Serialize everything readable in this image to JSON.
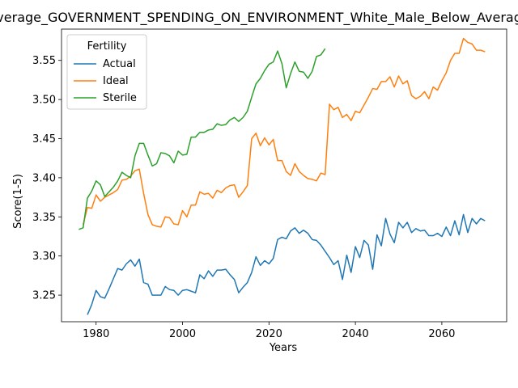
{
  "chart_data": {
    "type": "line",
    "title": "Average_GOVERNMENT_SPENDING_ON_ENVIRONMENT_White_Male_Below_Average",
    "xlabel": "Years",
    "ylabel": "Score(1-5)",
    "xlim": [
      1972,
      2075
    ],
    "ylim": [
      3.216,
      3.59
    ],
    "xticks": [
      1980,
      2000,
      2020,
      2040,
      2060
    ],
    "yticks": [
      3.25,
      3.3,
      3.35,
      3.4,
      3.45,
      3.5,
      3.55
    ],
    "xtick_labels": [
      "1980",
      "2000",
      "2020",
      "2040",
      "2060"
    ],
    "ytick_labels": [
      "3.25",
      "3.30",
      "3.35",
      "3.40",
      "3.45",
      "3.50",
      "3.55"
    ],
    "grid": false,
    "legend": {
      "title": "Fertility",
      "placement": "top-left"
    },
    "series": [
      {
        "name": "Actual",
        "color": "#1f77b4",
        "x": [
          1978,
          1979,
          1980,
          1981,
          1982,
          1983,
          1984,
          1985,
          1986,
          1987,
          1988,
          1989,
          1990,
          1991,
          1992,
          1993,
          1994,
          1995,
          1996,
          1997,
          1998,
          1999,
          2000,
          2001,
          2002,
          2003,
          2004,
          2005,
          2006,
          2007,
          2008,
          2009,
          2010,
          2011,
          2012,
          2013,
          2014,
          2015,
          2016,
          2017,
          2018,
          2019,
          2020,
          2021,
          2022,
          2023,
          2024,
          2025,
          2026,
          2027,
          2028,
          2029,
          2030,
          2031,
          2032,
          2033,
          2034,
          2035,
          2036,
          2037,
          2038,
          2039,
          2040,
          2041,
          2042,
          2043,
          2044,
          2045,
          2046,
          2047,
          2048,
          2049,
          2050,
          2051,
          2052,
          2053,
          2054,
          2055,
          2056,
          2057,
          2058,
          2059,
          2060,
          2061,
          2062,
          2063,
          2064,
          2065,
          2066,
          2067,
          2068,
          2069,
          2070
        ],
        "values": [
          3.225,
          3.238,
          3.256,
          3.248,
          3.246,
          3.258,
          3.271,
          3.284,
          3.282,
          3.29,
          3.295,
          3.287,
          3.296,
          3.266,
          3.264,
          3.25,
          3.25,
          3.25,
          3.261,
          3.257,
          3.256,
          3.25,
          3.256,
          3.257,
          3.255,
          3.253,
          3.276,
          3.271,
          3.281,
          3.274,
          3.282,
          3.282,
          3.283,
          3.276,
          3.27,
          3.253,
          3.26,
          3.266,
          3.279,
          3.299,
          3.288,
          3.294,
          3.29,
          3.297,
          3.321,
          3.324,
          3.322,
          3.332,
          3.336,
          3.329,
          3.333,
          3.329,
          3.321,
          3.32,
          3.314,
          3.306,
          3.298,
          3.289,
          3.294,
          3.27,
          3.301,
          3.279,
          3.312,
          3.298,
          3.32,
          3.314,
          3.283,
          3.327,
          3.313,
          3.348,
          3.328,
          3.317,
          3.343,
          3.336,
          3.343,
          3.33,
          3.335,
          3.332,
          3.333,
          3.326,
          3.326,
          3.329,
          3.325,
          3.337,
          3.326,
          3.345,
          3.327,
          3.353,
          3.33,
          3.348,
          3.341,
          3.348,
          3.345
        ]
      },
      {
        "name": "Ideal",
        "color": "#ff7f0e",
        "x": [
          1977,
          1978,
          1979,
          1980,
          1981,
          1982,
          1983,
          1984,
          1985,
          1986,
          1987,
          1988,
          1989,
          1990,
          1991,
          1992,
          1993,
          1994,
          1995,
          1996,
          1997,
          1998,
          1999,
          2000,
          2001,
          2002,
          2003,
          2004,
          2005,
          2006,
          2007,
          2008,
          2009,
          2010,
          2011,
          2012,
          2013,
          2014,
          2015,
          2016,
          2017,
          2018,
          2019,
          2020,
          2021,
          2022,
          2023,
          2024,
          2025,
          2026,
          2027,
          2028,
          2029,
          2030,
          2031,
          2032,
          2033,
          2034,
          2035,
          2036,
          2037,
          2038,
          2039,
          2040,
          2041,
          2042,
          2043,
          2044,
          2045,
          2046,
          2047,
          2048,
          2049,
          2050,
          2051,
          2052,
          2053,
          2054,
          2055,
          2056,
          2057,
          2058,
          2059,
          2060,
          2061,
          2062,
          2063,
          2064,
          2065,
          2066,
          2067,
          2068,
          2069,
          2070
        ],
        "values": [
          3.34,
          3.362,
          3.361,
          3.378,
          3.37,
          3.375,
          3.378,
          3.381,
          3.385,
          3.397,
          3.398,
          3.402,
          3.409,
          3.411,
          3.38,
          3.353,
          3.34,
          3.338,
          3.337,
          3.35,
          3.349,
          3.341,
          3.34,
          3.358,
          3.35,
          3.365,
          3.365,
          3.382,
          3.379,
          3.38,
          3.374,
          3.384,
          3.381,
          3.387,
          3.39,
          3.391,
          3.375,
          3.382,
          3.39,
          3.45,
          3.457,
          3.441,
          3.451,
          3.442,
          3.449,
          3.422,
          3.422,
          3.408,
          3.403,
          3.418,
          3.408,
          3.403,
          3.399,
          3.398,
          3.396,
          3.406,
          3.404,
          3.494,
          3.487,
          3.49,
          3.477,
          3.481,
          3.473,
          3.485,
          3.483,
          3.493,
          3.503,
          3.514,
          3.513,
          3.523,
          3.523,
          3.529,
          3.516,
          3.53,
          3.52,
          3.524,
          3.505,
          3.501,
          3.504,
          3.51,
          3.501,
          3.516,
          3.512,
          3.524,
          3.534,
          3.55,
          3.559,
          3.559,
          3.578,
          3.573,
          3.571,
          3.563,
          3.563,
          3.561
        ]
      },
      {
        "name": "Sterile",
        "color": "#2ca02c",
        "x": [
          1976,
          1977,
          1978,
          1979,
          1980,
          1981,
          1982,
          1983,
          1984,
          1985,
          1986,
          1987,
          1988,
          1989,
          1990,
          1991,
          1992,
          1993,
          1994,
          1995,
          1996,
          1997,
          1998,
          1999,
          2000,
          2001,
          2002,
          2003,
          2004,
          2005,
          2006,
          2007,
          2008,
          2009,
          2010,
          2011,
          2012,
          2013,
          2014,
          2015,
          2016,
          2017,
          2018,
          2019,
          2020,
          2021,
          2022,
          2023,
          2024,
          2025,
          2026,
          2027,
          2028,
          2029,
          2030,
          2031,
          2032,
          2033
        ],
        "values": [
          3.334,
          3.336,
          3.374,
          3.383,
          3.396,
          3.391,
          3.376,
          3.382,
          3.388,
          3.396,
          3.407,
          3.403,
          3.4,
          3.428,
          3.444,
          3.444,
          3.429,
          3.415,
          3.418,
          3.432,
          3.431,
          3.428,
          3.419,
          3.434,
          3.429,
          3.43,
          3.452,
          3.452,
          3.458,
          3.458,
          3.461,
          3.462,
          3.469,
          3.467,
          3.468,
          3.474,
          3.477,
          3.472,
          3.477,
          3.485,
          3.503,
          3.52,
          3.527,
          3.537,
          3.545,
          3.548,
          3.562,
          3.546,
          3.515,
          3.533,
          3.548,
          3.536,
          3.535,
          3.527,
          3.536,
          3.555,
          3.557,
          3.565
        ]
      }
    ]
  }
}
